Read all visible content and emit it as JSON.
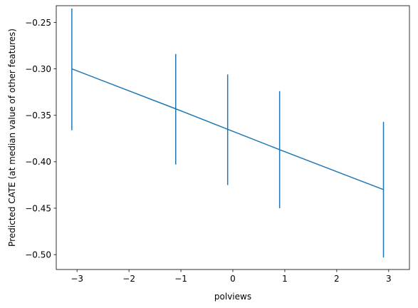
{
  "chart_data": {
    "type": "line",
    "title": "",
    "xlabel": "polviews",
    "ylabel": "Predicted CATE (at median value of other features)",
    "xlim": [
      -3.4,
      3.4
    ],
    "ylim": [
      -0.516,
      -0.232
    ],
    "xticks": [
      -3,
      -2,
      -1,
      0,
      1,
      2,
      3
    ],
    "xtick_labels": [
      "−3",
      "−2",
      "−1",
      "0",
      "1",
      "2",
      "3"
    ],
    "yticks": [
      -0.25,
      -0.3,
      -0.35,
      -0.4,
      -0.45,
      -0.5
    ],
    "ytick_labels": [
      "−0.25",
      "−0.30",
      "−0.35",
      "−0.40",
      "−0.45",
      "−0.50"
    ],
    "grid": false,
    "series": [
      {
        "color": "#1f77b4",
        "x": [
          -3.1,
          -1.1,
          -0.1,
          0.9,
          2.9
        ],
        "y": [
          -0.3,
          -0.343,
          -0.365,
          -0.387,
          -0.43
        ],
        "y_lower": [
          -0.366,
          -0.403,
          -0.425,
          -0.45,
          -0.503
        ],
        "y_upper": [
          -0.235,
          -0.284,
          -0.306,
          -0.324,
          -0.357
        ]
      }
    ]
  }
}
